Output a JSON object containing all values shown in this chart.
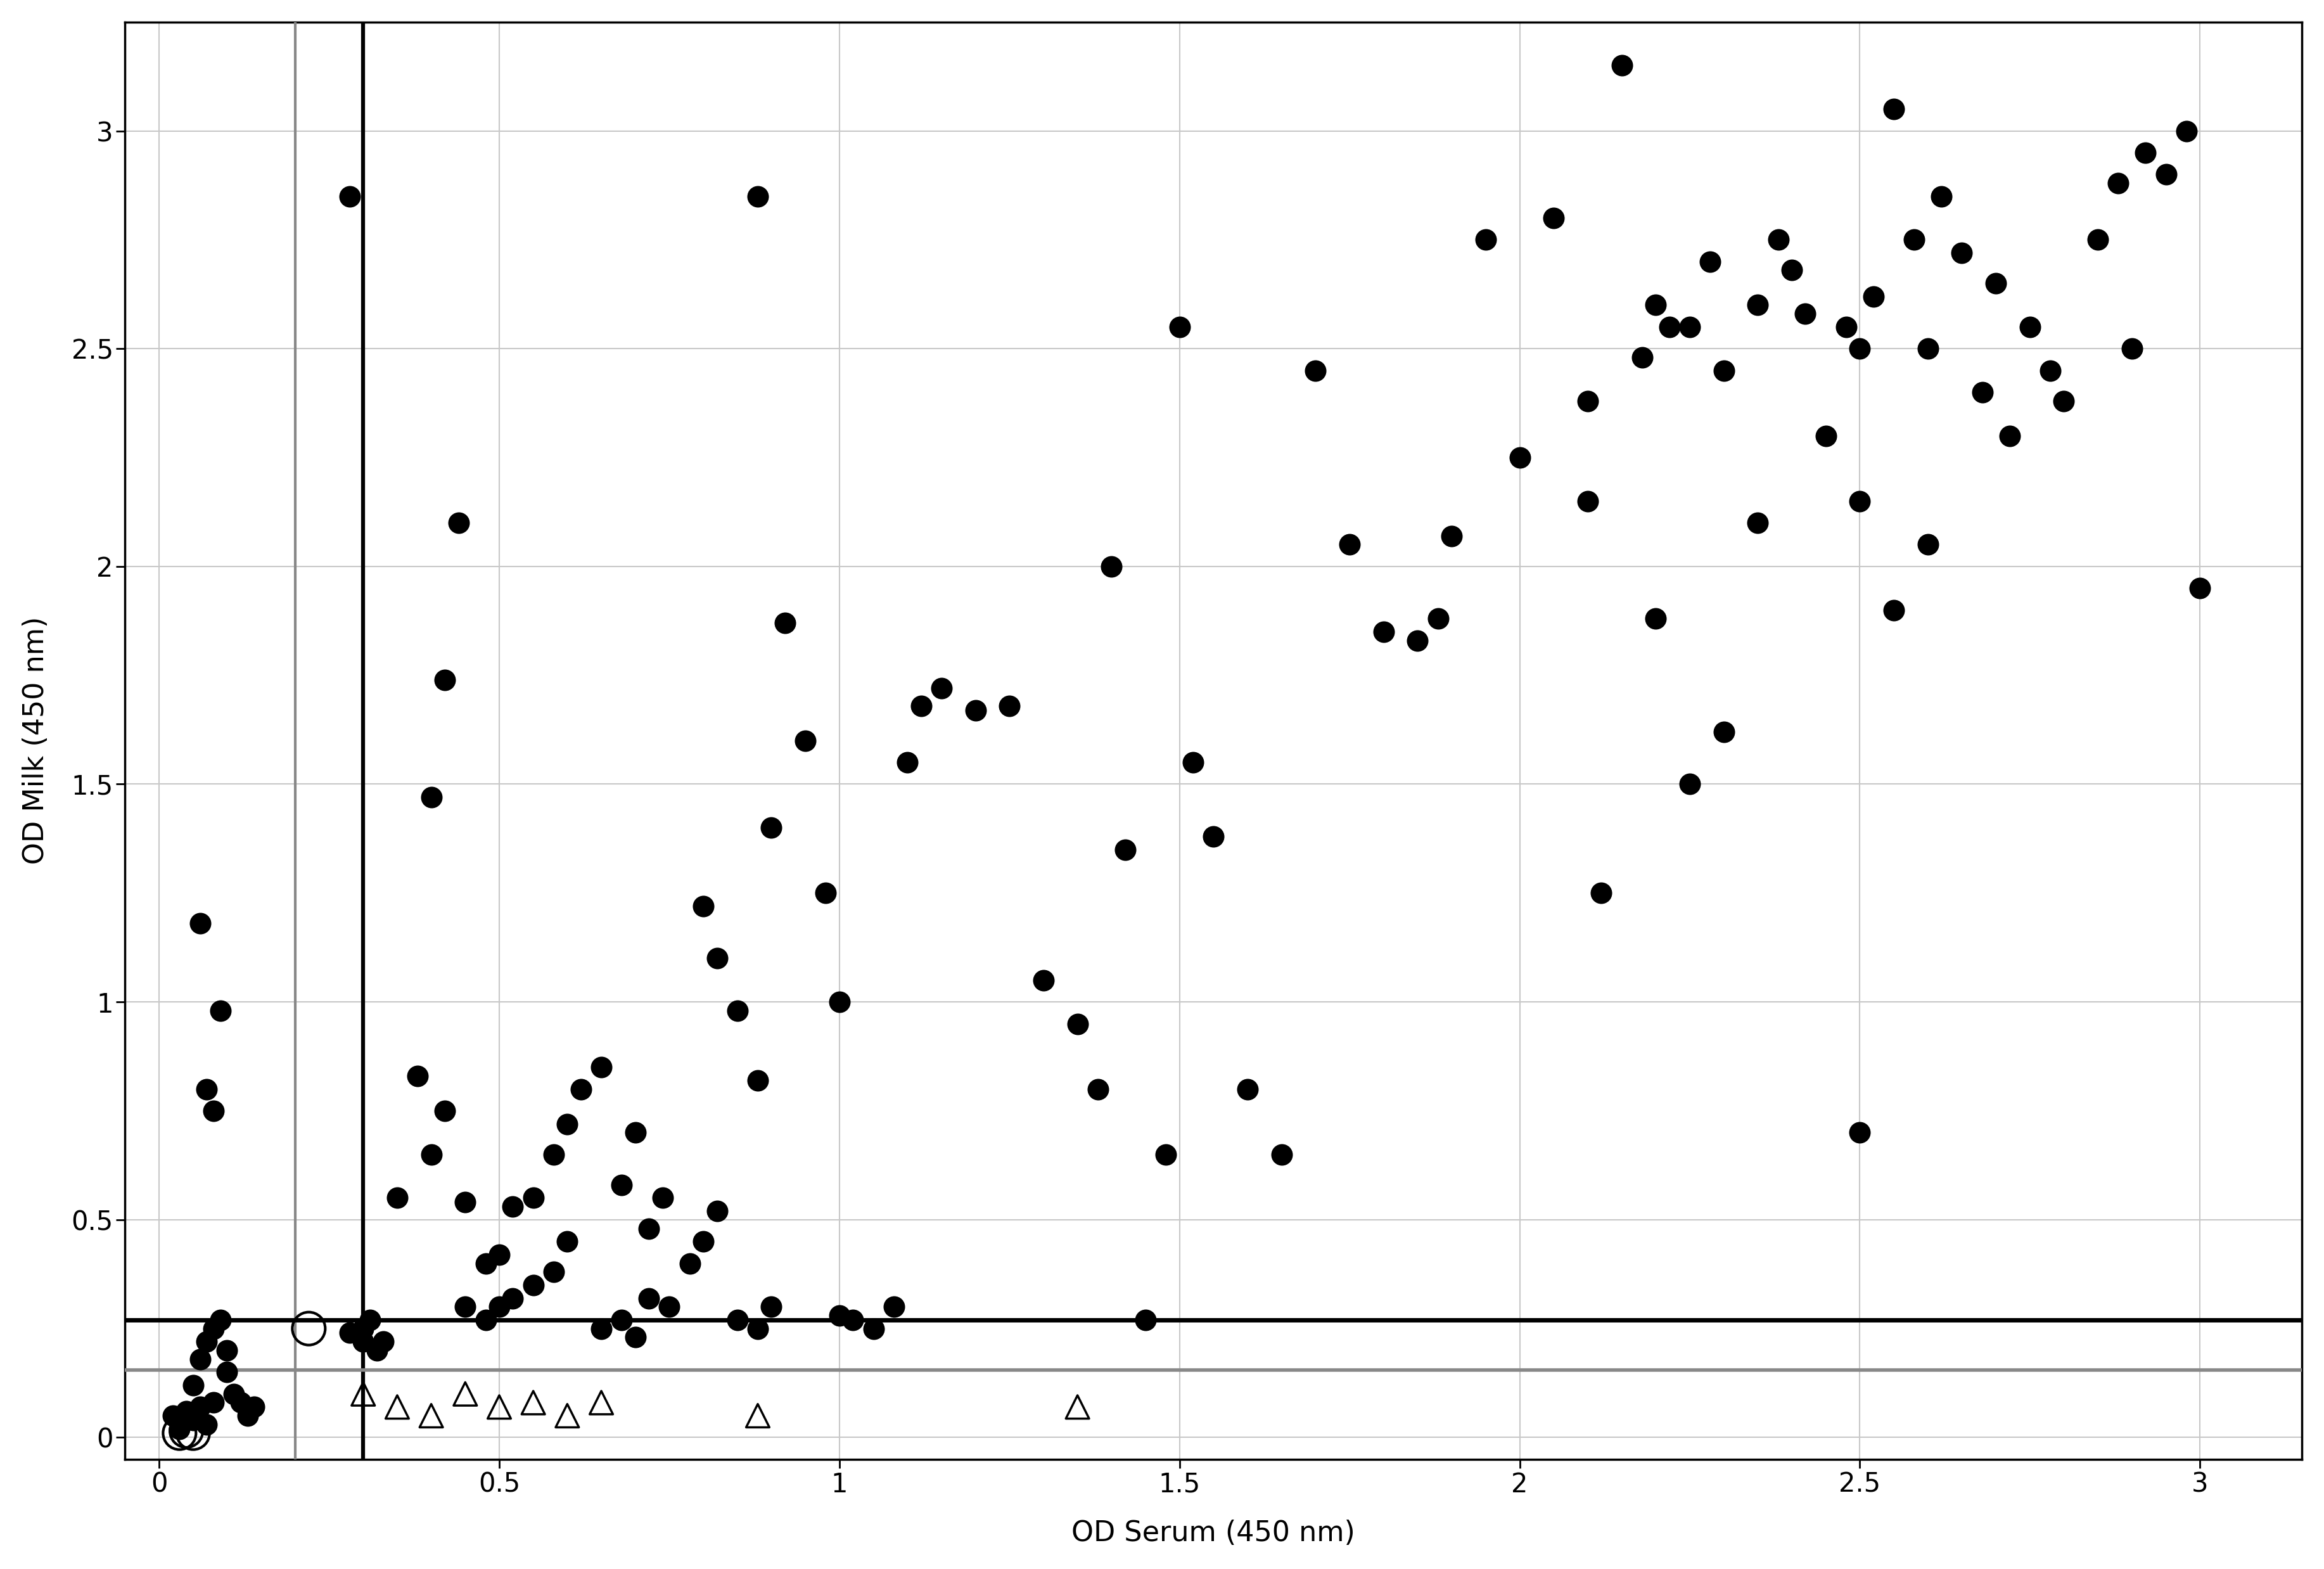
{
  "title": "",
  "xlabel": "OD Serum (450 nm)",
  "ylabel": "OD Milk (450 nm)",
  "xlim": [
    -0.05,
    3.15
  ],
  "ylim": [
    -0.05,
    3.25
  ],
  "xticks": [
    0,
    0.5,
    1.0,
    1.5,
    2.0,
    2.5,
    3.0
  ],
  "yticks": [
    0,
    0.5,
    1.0,
    1.5,
    2.0,
    2.5,
    3.0
  ],
  "vline_gray": 0.2,
  "vline_black": 0.3,
  "hline_black": 0.27,
  "hline_gray": 0.155,
  "filled_dots": [
    [
      0.02,
      0.05
    ],
    [
      0.03,
      0.02
    ],
    [
      0.04,
      0.06
    ],
    [
      0.05,
      0.04
    ],
    [
      0.06,
      0.07
    ],
    [
      0.07,
      0.03
    ],
    [
      0.08,
      0.08
    ],
    [
      0.05,
      0.12
    ],
    [
      0.06,
      0.18
    ],
    [
      0.07,
      0.22
    ],
    [
      0.08,
      0.25
    ],
    [
      0.09,
      0.27
    ],
    [
      0.1,
      0.2
    ],
    [
      0.1,
      0.15
    ],
    [
      0.11,
      0.1
    ],
    [
      0.12,
      0.08
    ],
    [
      0.13,
      0.05
    ],
    [
      0.14,
      0.07
    ],
    [
      0.08,
      0.75
    ],
    [
      0.09,
      0.98
    ],
    [
      0.06,
      1.18
    ],
    [
      0.07,
      0.8
    ],
    [
      0.28,
      2.85
    ],
    [
      0.3,
      0.22
    ],
    [
      0.3,
      0.25
    ],
    [
      0.31,
      0.27
    ],
    [
      0.32,
      0.2
    ],
    [
      0.33,
      0.22
    ],
    [
      0.28,
      0.24
    ],
    [
      0.35,
      0.55
    ],
    [
      0.38,
      0.83
    ],
    [
      0.4,
      0.65
    ],
    [
      0.42,
      0.75
    ],
    [
      0.45,
      0.54
    ],
    [
      0.48,
      0.4
    ],
    [
      0.5,
      0.42
    ],
    [
      0.52,
      0.53
    ],
    [
      0.55,
      0.35
    ],
    [
      0.58,
      0.38
    ],
    [
      0.6,
      0.45
    ],
    [
      0.4,
      1.47
    ],
    [
      0.42,
      1.74
    ],
    [
      0.44,
      2.1
    ],
    [
      0.45,
      0.3
    ],
    [
      0.5,
      0.3
    ],
    [
      0.52,
      0.32
    ],
    [
      0.48,
      0.27
    ],
    [
      0.55,
      0.55
    ],
    [
      0.58,
      0.65
    ],
    [
      0.6,
      0.72
    ],
    [
      0.62,
      0.8
    ],
    [
      0.65,
      0.85
    ],
    [
      0.68,
      0.58
    ],
    [
      0.7,
      0.7
    ],
    [
      0.72,
      0.48
    ],
    [
      0.74,
      0.55
    ],
    [
      0.78,
      0.4
    ],
    [
      0.8,
      0.45
    ],
    [
      0.82,
      0.52
    ],
    [
      0.65,
      0.25
    ],
    [
      0.68,
      0.27
    ],
    [
      0.7,
      0.23
    ],
    [
      0.75,
      0.3
    ],
    [
      0.72,
      0.32
    ],
    [
      0.8,
      1.22
    ],
    [
      0.82,
      1.1
    ],
    [
      0.85,
      0.98
    ],
    [
      0.88,
      0.82
    ],
    [
      0.9,
      1.4
    ],
    [
      0.85,
      0.27
    ],
    [
      0.88,
      0.25
    ],
    [
      0.9,
      0.3
    ],
    [
      0.88,
      2.85
    ],
    [
      0.92,
      1.87
    ],
    [
      0.95,
      1.6
    ],
    [
      0.98,
      1.25
    ],
    [
      1.0,
      1.0
    ],
    [
      1.0,
      0.28
    ],
    [
      1.02,
      0.27
    ],
    [
      1.05,
      0.25
    ],
    [
      1.08,
      0.3
    ],
    [
      1.1,
      1.55
    ],
    [
      1.12,
      1.68
    ],
    [
      1.15,
      1.72
    ],
    [
      1.2,
      1.67
    ],
    [
      1.25,
      1.68
    ],
    [
      1.3,
      1.05
    ],
    [
      1.35,
      0.95
    ],
    [
      1.38,
      0.8
    ],
    [
      1.4,
      2.0
    ],
    [
      1.42,
      1.35
    ],
    [
      1.45,
      0.27
    ],
    [
      1.48,
      0.65
    ],
    [
      1.5,
      2.55
    ],
    [
      1.52,
      1.55
    ],
    [
      1.55,
      1.38
    ],
    [
      1.6,
      0.8
    ],
    [
      1.65,
      0.65
    ],
    [
      1.7,
      2.45
    ],
    [
      1.75,
      2.05
    ],
    [
      1.8,
      1.85
    ],
    [
      1.85,
      1.83
    ],
    [
      1.9,
      2.07
    ],
    [
      1.95,
      2.75
    ],
    [
      2.0,
      2.25
    ],
    [
      2.05,
      2.8
    ],
    [
      2.1,
      2.38
    ],
    [
      2.15,
      3.15
    ],
    [
      2.18,
      2.48
    ],
    [
      2.2,
      2.6
    ],
    [
      2.22,
      2.55
    ],
    [
      2.25,
      2.55
    ],
    [
      2.28,
      2.7
    ],
    [
      2.3,
      2.45
    ],
    [
      2.35,
      2.6
    ],
    [
      2.38,
      2.75
    ],
    [
      2.4,
      2.68
    ],
    [
      2.42,
      2.58
    ],
    [
      2.45,
      2.3
    ],
    [
      2.48,
      2.55
    ],
    [
      2.5,
      2.5
    ],
    [
      2.52,
      2.62
    ],
    [
      2.55,
      3.05
    ],
    [
      2.58,
      2.75
    ],
    [
      2.6,
      2.5
    ],
    [
      2.62,
      2.85
    ],
    [
      2.65,
      2.72
    ],
    [
      2.68,
      2.4
    ],
    [
      2.7,
      2.65
    ],
    [
      2.72,
      2.3
    ],
    [
      2.75,
      2.55
    ],
    [
      2.78,
      2.45
    ],
    [
      2.8,
      2.38
    ],
    [
      2.85,
      2.75
    ],
    [
      2.88,
      2.88
    ],
    [
      2.9,
      2.5
    ],
    [
      2.92,
      2.95
    ],
    [
      2.95,
      2.9
    ],
    [
      2.98,
      3.0
    ],
    [
      3.0,
      1.95
    ],
    [
      2.2,
      1.88
    ],
    [
      2.25,
      1.5
    ],
    [
      2.3,
      1.62
    ],
    [
      2.35,
      2.1
    ],
    [
      2.1,
      2.15
    ],
    [
      1.88,
      1.88
    ],
    [
      2.5,
      2.15
    ],
    [
      2.55,
      1.9
    ],
    [
      2.6,
      2.05
    ],
    [
      2.5,
      0.7
    ],
    [
      2.12,
      1.25
    ]
  ],
  "open_circles": [
    [
      0.03,
      0.01
    ],
    [
      0.04,
      0.015
    ],
    [
      0.05,
      0.01
    ],
    [
      0.22,
      0.25
    ]
  ],
  "open_triangles": [
    [
      0.3,
      0.1
    ],
    [
      0.35,
      0.07
    ],
    [
      0.4,
      0.05
    ],
    [
      0.45,
      0.1
    ],
    [
      0.5,
      0.07
    ],
    [
      0.55,
      0.08
    ],
    [
      0.6,
      0.05
    ],
    [
      0.65,
      0.08
    ],
    [
      0.88,
      0.05
    ],
    [
      1.35,
      0.07
    ]
  ],
  "background_color": "#ffffff",
  "grid_color": "#c8c8c8",
  "dot_color": "#000000",
  "xlabel_fontsize": 32,
  "ylabel_fontsize": 32,
  "tick_fontsize": 30,
  "vline_gray_color": "#888888",
  "vline_black_color": "#000000",
  "hline_black_color": "#000000",
  "hline_gray_color": "#888888",
  "vline_lw_gray": 3,
  "vline_lw_black": 4.5,
  "hline_lw_black": 5,
  "hline_lw_gray": 4
}
